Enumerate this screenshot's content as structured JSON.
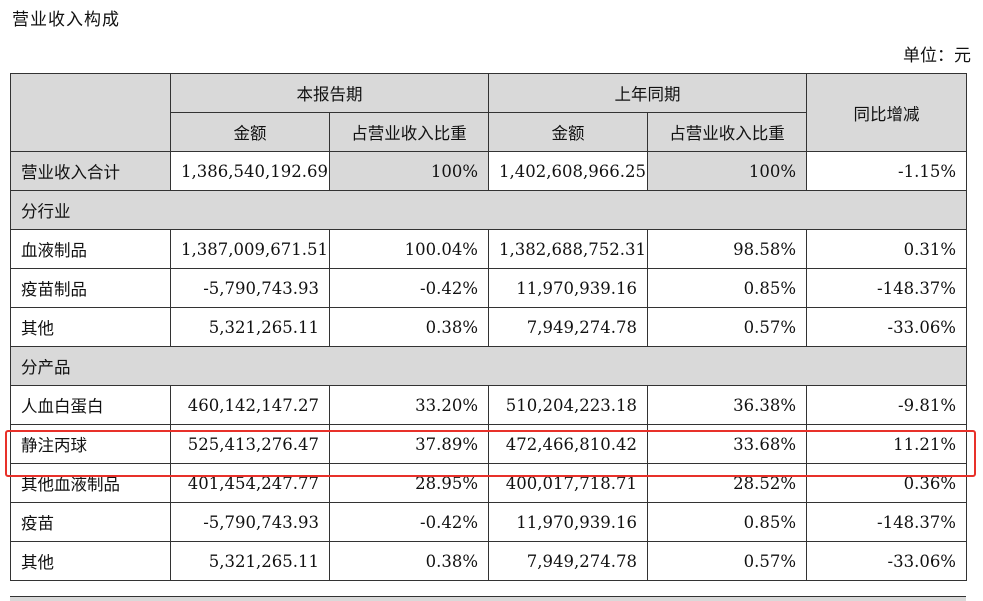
{
  "page": {
    "title": "营业收入构成",
    "unit": "单位：元"
  },
  "table": {
    "header": {
      "current_period": "本报告期",
      "prior_period": "上年同期",
      "yoy": "同比增减",
      "amount": "金额",
      "share": "占营业收入比重"
    },
    "total": {
      "label": "营业收入合计",
      "cur_amount": "1,386,540,192.69",
      "cur_share": "100%",
      "prev_amount": "1,402,608,966.25",
      "prev_share": "100%",
      "yoy": "-1.15%"
    },
    "by_industry": {
      "label": "分行业",
      "rows": [
        {
          "label": "血液制品",
          "cur_amount": "1,387,009,671.51",
          "cur_share": "100.04%",
          "prev_amount": "1,382,688,752.31",
          "prev_share": "98.58%",
          "yoy": "0.31%"
        },
        {
          "label": "疫苗制品",
          "cur_amount": "-5,790,743.93",
          "cur_share": "-0.42%",
          "prev_amount": "11,970,939.16",
          "prev_share": "0.85%",
          "yoy": "-148.37%"
        },
        {
          "label": "其他",
          "cur_amount": "5,321,265.11",
          "cur_share": "0.38%",
          "prev_amount": "7,949,274.78",
          "prev_share": "0.57%",
          "yoy": "-33.06%"
        }
      ]
    },
    "by_product": {
      "label": "分产品",
      "rows": [
        {
          "label": "人血白蛋白",
          "cur_amount": "460,142,147.27",
          "cur_share": "33.20%",
          "prev_amount": "510,204,223.18",
          "prev_share": "36.38%",
          "yoy": "-9.81%"
        },
        {
          "label": "静注丙球",
          "cur_amount": "525,413,276.47",
          "cur_share": "37.89%",
          "prev_amount": "472,466,810.42",
          "prev_share": "33.68%",
          "yoy": "11.21%"
        },
        {
          "label": "其他血液制品",
          "cur_amount": "401,454,247.77",
          "cur_share": "28.95%",
          "prev_amount": "400,017,718.71",
          "prev_share": "28.52%",
          "yoy": "0.36%"
        },
        {
          "label": "疫苗",
          "cur_amount": "-5,790,743.93",
          "cur_share": "-0.42%",
          "prev_amount": "11,970,939.16",
          "prev_share": "0.85%",
          "yoy": "-148.37%"
        },
        {
          "label": "其他",
          "cur_amount": "5,321,265.11",
          "cur_share": "0.38%",
          "prev_amount": "7,949,274.78",
          "prev_share": "0.57%",
          "yoy": "-33.06%"
        }
      ]
    }
  },
  "colors": {
    "header_fill": "#d9d9d9",
    "highlight_border": "#e8312a"
  }
}
